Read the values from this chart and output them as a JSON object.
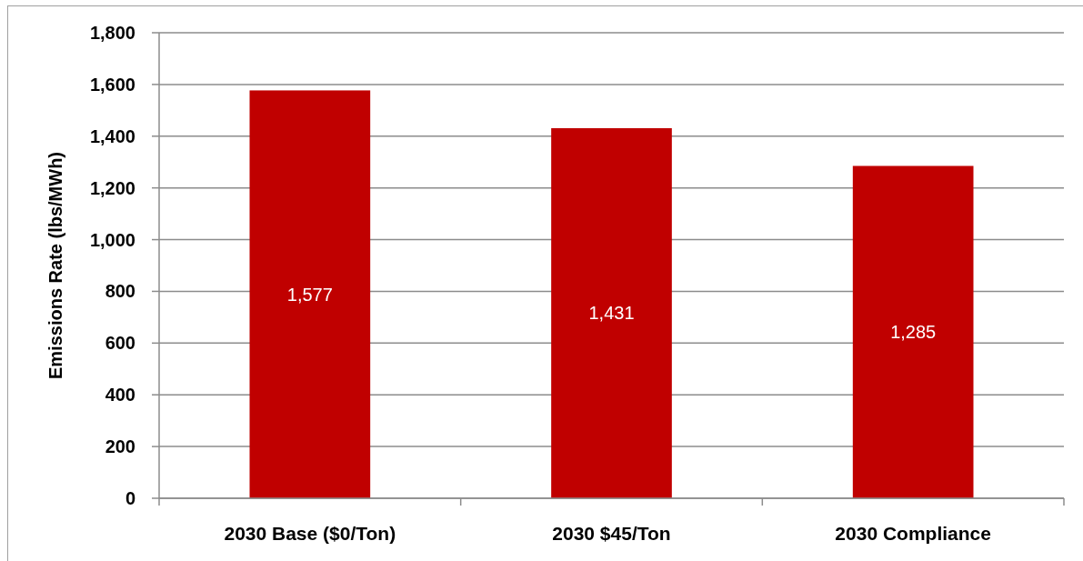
{
  "chart_data": {
    "type": "bar",
    "ylabel": "Emissions Rate (lbs/MWh)",
    "categories": [
      "2030 Base ($0/Ton)",
      "2030 $45/Ton",
      "2030 Compliance"
    ],
    "values": [
      1577,
      1431,
      1285
    ],
    "color": "#c00000",
    "value_labels": [
      "1,577",
      "1,431",
      "1,285"
    ],
    "ylim": [
      0,
      1800
    ],
    "yticks": [
      0,
      200,
      400,
      600,
      800,
      {
        "value": 1000,
        "label": "1,000"
      },
      {
        "value": 1200,
        "label": "1,200"
      },
      {
        "value": 1400,
        "label": "1,400"
      },
      {
        "value": 1600,
        "label": "1,600"
      },
      {
        "value": 1800,
        "label": "1,800"
      }
    ],
    "grid": "y"
  }
}
